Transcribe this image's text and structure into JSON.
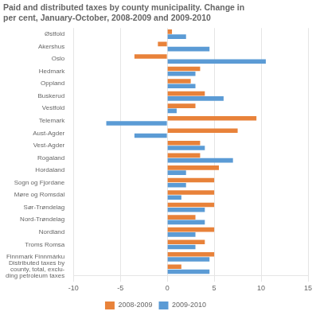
{
  "chart_data": {
    "type": "bar",
    "orientation": "horizontal",
    "title": "Paid and distributed taxes by county municipality. Change in\nper cent, January-October, 2008-2009 and 2009-2010",
    "categories": [
      "Østfold",
      "Akershus",
      "Oslo",
      "Hedmark",
      "Oppland",
      "Buskerud",
      "Vestfold",
      "Telemark",
      "Aust-Agder",
      "Vest-Agder",
      "Rogaland",
      "Hordaland",
      "Sogn og Fjordane",
      "Møre og Romsdal",
      "Sør-Trøndelag",
      "Nord-Trøndelag",
      "Nordland",
      "Troms Romsa",
      "Finnmark Finnmárku",
      "Distributed taxes by\ncounty, total, exclu-\nding petroleum taxes"
    ],
    "series": [
      {
        "name": "2008-2009",
        "color": "#E8823A",
        "values": [
          0.5,
          -1.0,
          -3.5,
          3.5,
          2.5,
          4.0,
          3.0,
          9.5,
          7.5,
          3.5,
          3.5,
          5.5,
          5.0,
          5.0,
          5.0,
          3.0,
          5.0,
          4.0,
          5.0,
          1.5
        ]
      },
      {
        "name": "2009-2010",
        "color": "#5B9BD5",
        "values": [
          2.0,
          4.5,
          10.5,
          3.0,
          3.0,
          6.0,
          1.0,
          -6.5,
          -3.5,
          4.0,
          7.0,
          2.0,
          2.0,
          1.5,
          4.0,
          4.0,
          3.0,
          3.0,
          4.5,
          4.5
        ]
      }
    ],
    "xlim": [
      -10,
      15
    ],
    "xticks": [
      -10,
      -5,
      0,
      5,
      10,
      15
    ],
    "grid": true,
    "legend": "bottom"
  }
}
